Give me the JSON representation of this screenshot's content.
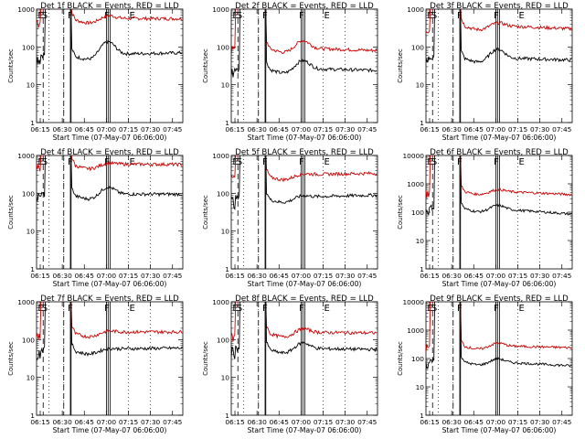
{
  "chart_data": [
    {
      "type": "line",
      "title": "Det 1f BLACK = Events, RED = LLD",
      "ylabel": "Counts/sec",
      "xlabel": "Start Time (07-May-07 06:06:00)",
      "ylog": true,
      "ylim": [
        1,
        1000
      ],
      "yticks": [
        "1",
        "10",
        "100",
        "1000"
      ],
      "xticks": [
        "06:15",
        "06:30",
        "06:45",
        "07:00",
        "07:15",
        "07:30",
        "07:45"
      ],
      "xlim_min": [
        6,
        105
      ],
      "markers": [
        "E",
        "S",
        "F",
        "F",
        "E"
      ],
      "series": [
        {
          "color": "#000000",
          "pts": [
            [
              8,
              45
            ],
            [
              9,
              30
            ],
            [
              10,
              55
            ],
            [
              11,
              38
            ],
            [
              12,
              50
            ]
          ]
        },
        {
          "color": "#cc0000",
          "pts": [
            [
              8,
              600
            ],
            [
              9,
              800
            ],
            [
              10,
              1000
            ]
          ]
        }
      ]
    },
    {
      "type": "line",
      "title": "Det 2f BLACK = Events, RED = LLD",
      "ylabel": "Counts/sec",
      "xlabel": "Start Time (07-May-07 06:06:00)",
      "ylog": true,
      "ylim": [
        1,
        1000
      ],
      "yticks": [
        "1",
        "10",
        "100",
        "1000"
      ],
      "xticks": [
        "06:15",
        "06:30",
        "06:45",
        "07:00",
        "07:15",
        "07:30",
        "07:45"
      ],
      "markers": [
        "E",
        "S",
        "F",
        "F",
        "E"
      ]
    },
    {
      "type": "line",
      "title": "Det 3f BLACK = Events, RED = LLD",
      "ylabel": "Counts/sec",
      "xlabel": "Start Time (07-May-07 06:06:00)",
      "ylog": true,
      "ylim": [
        1,
        1000
      ],
      "yticks": [
        "1",
        "10",
        "100",
        "1000"
      ],
      "xticks": [
        "06:15",
        "06:30",
        "06:45",
        "07:00",
        "07:15",
        "07:30",
        "07:45"
      ],
      "markers": [
        "E",
        "S",
        "F",
        "F",
        "E"
      ]
    },
    {
      "type": "line",
      "title": "Det 4f BLACK = Events, RED = LLD",
      "ylabel": "Counts/sec",
      "xlabel": "Start Time (07-May-07 06:06:00)",
      "ylog": true,
      "ylim": [
        1,
        1000
      ],
      "yticks": [
        "1",
        "10",
        "100",
        "1000"
      ],
      "xticks": [
        "06:15",
        "06:30",
        "06:45",
        "07:00",
        "07:15",
        "07:30",
        "07:45"
      ],
      "markers": [
        "E",
        "S",
        "F",
        "F",
        "E"
      ]
    },
    {
      "type": "line",
      "title": "Det 5f BLACK = Events, RED = LLD",
      "ylabel": "Counts/sec",
      "xlabel": "Start Time (07-May-07 06:06:00)",
      "ylog": true,
      "ylim": [
        1,
        1000
      ],
      "yticks": [
        "1",
        "10",
        "100",
        "1000"
      ],
      "xticks": [
        "06:15",
        "06:30",
        "06:45",
        "07:00",
        "07:15",
        "07:30",
        "07:45"
      ],
      "markers": [
        "E",
        "S",
        "F",
        "F",
        "E"
      ]
    },
    {
      "type": "line",
      "title": "Det 6f BLACK = Events, RED = LLD",
      "ylabel": "Counts/sec",
      "xlabel": "Start Time (07-May-07 06:06:00)",
      "ylog": true,
      "ylim": [
        1,
        10000
      ],
      "yticks": [
        "1",
        "10",
        "100",
        "1000",
        "10000"
      ],
      "xticks": [
        "06:15",
        "06:30",
        "06:45",
        "07:00",
        "07:15",
        "07:30",
        "07:45"
      ],
      "markers": [
        "E",
        "S",
        "F",
        "F",
        "E"
      ]
    },
    {
      "type": "line",
      "title": "Det 7f BLACK = Events, RED = LLD",
      "ylabel": "Counts/sec",
      "xlabel": "Start Time (07-May-07 06:06:00)",
      "ylog": true,
      "ylim": [
        1,
        1000
      ],
      "yticks": [
        "1",
        "10",
        "100",
        "1000"
      ],
      "xticks": [
        "06:15",
        "06:30",
        "06:45",
        "07:00",
        "07:15",
        "07:30",
        "07:45"
      ],
      "markers": [
        "E",
        "S",
        "F",
        "F",
        "E"
      ]
    },
    {
      "type": "line",
      "title": "Det 8f BLACK = Events, RED = LLD",
      "ylabel": "Counts/sec",
      "xlabel": "Start Time (07-May-07 06:06:00)",
      "ylog": true,
      "ylim": [
        1,
        1000
      ],
      "yticks": [
        "1",
        "10",
        "100",
        "1000"
      ],
      "xticks": [
        "06:15",
        "06:30",
        "06:45",
        "07:00",
        "07:15",
        "07:30",
        "07:45"
      ],
      "markers": [
        "E",
        "S",
        "F",
        "F",
        "E"
      ]
    },
    {
      "type": "line",
      "title": "Det 9f BLACK = Events, RED = LLD",
      "ylabel": "Counts/sec",
      "xlabel": "Start Time (07-May-07 06:06:00)",
      "ylog": true,
      "ylim": [
        1,
        10000
      ],
      "yticks": [
        "1",
        "10",
        "100",
        "1000",
        "10000"
      ],
      "xticks": [
        "06:15",
        "06:30",
        "06:45",
        "07:00",
        "07:15",
        "07:30",
        "07:45"
      ],
      "markers": [
        "E",
        "S",
        "F",
        "F",
        "E"
      ]
    }
  ],
  "series_profiles": [
    {
      "black": {
        "base": 62,
        "peak": 140,
        "late": 70
      },
      "red": {
        "base": 580,
        "peak": 700,
        "late": 560
      }
    },
    {
      "black": {
        "base": 28,
        "peak": 45,
        "late": 24
      },
      "red": {
        "base": 100,
        "peak": 150,
        "late": 80
      }
    },
    {
      "black": {
        "base": 55,
        "peak": 90,
        "late": 45
      },
      "red": {
        "base": 400,
        "peak": 450,
        "late": 300
      }
    },
    {
      "black": {
        "base": 95,
        "peak": 150,
        "late": 95
      },
      "red": {
        "base": 600,
        "peak": 650,
        "late": 580
      }
    },
    {
      "black": {
        "base": 75,
        "peak": 90,
        "late": 90
      },
      "red": {
        "base": 300,
        "peak": 340,
        "late": 340
      }
    },
    {
      "black": {
        "base": 150,
        "peak": 180,
        "late": 85
      },
      "red": {
        "base": 600,
        "peak": 650,
        "late": 420
      }
    },
    {
      "black": {
        "base": 55,
        "peak": 60,
        "late": 60
      },
      "red": {
        "base": 160,
        "peak": 175,
        "late": 160
      }
    },
    {
      "black": {
        "base": 60,
        "peak": 85,
        "late": 55
      },
      "red": {
        "base": 160,
        "peak": 200,
        "late": 150
      }
    },
    {
      "black": {
        "base": 85,
        "peak": 100,
        "late": 55
      },
      "red": {
        "base": 300,
        "peak": 360,
        "late": 240
      }
    }
  ],
  "colors": {
    "events": "#000000",
    "lld": "#cc0000"
  }
}
